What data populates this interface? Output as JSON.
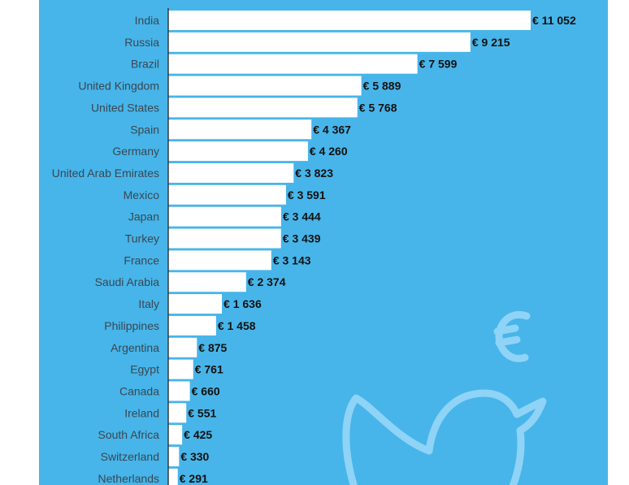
{
  "chart_data": {
    "type": "bar",
    "orientation": "horizontal",
    "currency_symbol": "€",
    "categories": [
      "India",
      "Russia",
      "Brazil",
      "United Kingdom",
      "United States",
      "Spain",
      "Germany",
      "United Arab Emirates",
      "Mexico",
      "Japan",
      "Turkey",
      "France",
      "Saudi Arabia",
      "Italy",
      "Philippines",
      "Argentina",
      "Egypt",
      "Canada",
      "Ireland",
      "South Africa",
      "Switzerland",
      "Netherlands"
    ],
    "values": [
      11052,
      9215,
      7599,
      5889,
      5768,
      4367,
      4260,
      3823,
      3591,
      3444,
      3439,
      3143,
      2374,
      1636,
      1458,
      875,
      761,
      660,
      551,
      425,
      330,
      291
    ],
    "value_labels": [
      "€ 11 052",
      "€ 9 215",
      "€ 7 599",
      "€ 5 889",
      "€ 5 768",
      "€ 4 367",
      "€ 4 260",
      "€ 3 823",
      "€ 3 591",
      "€ 3 444",
      "€ 3 439",
      "€ 3 143",
      "€ 2 374",
      "€ 1 636",
      "€ 1 458",
      "€ 875",
      "€ 761",
      "€ 660",
      "€ 551",
      "€ 425",
      "€ 330",
      "€ 291"
    ],
    "title": "",
    "xlabel": "",
    "ylabel": "",
    "grid": false,
    "legend": "none",
    "colors": {
      "background": "#47b5e9",
      "bar": "#ffffff",
      "category_text": "#3a4652",
      "value_text": "#111111",
      "decoration": "#8fd3f7"
    }
  },
  "decorations": [
    "euro-sign-icon",
    "bird-icon"
  ]
}
